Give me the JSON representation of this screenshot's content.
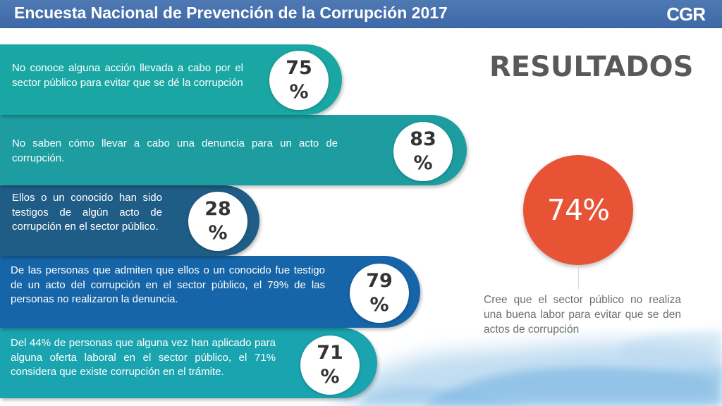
{
  "header": {
    "title": "Encuesta Nacional de Prevención de la Corrupción 2017",
    "logo": "CGR"
  },
  "items": [
    {
      "text": "No conoce alguna acción llevada a cabo por el sector público para evitar que se dé la corrupción",
      "value_number": "75",
      "value_unit": "%",
      "color": "#1aa7a3"
    },
    {
      "text": "No saben cómo llevar a cabo una denuncia para un acto de corrupción.",
      "value_number": "83",
      "value_unit": "%",
      "color": "#1d9da0"
    },
    {
      "text": "Ellos o un conocido han sido testigos de algún acto de corrupción en el sector público.",
      "value_number": "28",
      "value_unit": "%",
      "color": "#1f5d86"
    },
    {
      "text": "De las personas que admiten que ellos o un conocido fue testigo de un acto del corrupción en el sector público, el 79% de las personas no realizaron la denuncia.",
      "value_number": "79",
      "value_unit": "%",
      "color": "#1565a8"
    },
    {
      "text": "Del 44% de personas que alguna vez han aplicado para alguna oferta laboral en el sector público, el 71% considera que existe corrupción en el trámite.",
      "value_number": "71",
      "value_unit": "%",
      "color": "#1aa4b0"
    }
  ],
  "results": {
    "title": "RESULTADOS",
    "highlight_value": "74%",
    "highlight_color": "#e85335",
    "description": "Cree que el sector público no realiza una buena labor para evitar que se den actos de corrupción"
  }
}
